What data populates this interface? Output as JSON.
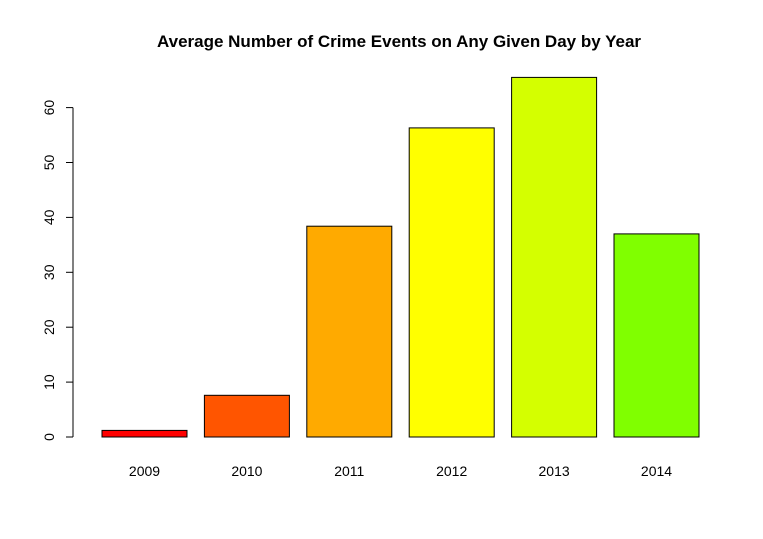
{
  "chart_data": {
    "type": "bar",
    "title": "Average Number of Crime Events on Any Given Day by Year",
    "xlabel": "",
    "ylabel": "",
    "categories": [
      "2009",
      "2010",
      "2011",
      "2012",
      "2013",
      "2014"
    ],
    "values": [
      1.2,
      7.6,
      38.4,
      56.3,
      65.5,
      37.0
    ],
    "colors": [
      "#FF0000",
      "#FF5500",
      "#FFAA00",
      "#FFFF00",
      "#D4FF00",
      "#80FF00"
    ],
    "bar_border_color": "#000000",
    "ylim": [
      0,
      65
    ],
    "y_ticks": [
      "0",
      "10",
      "20",
      "30",
      "40",
      "50",
      "60"
    ],
    "grid": false,
    "legend": "none"
  }
}
